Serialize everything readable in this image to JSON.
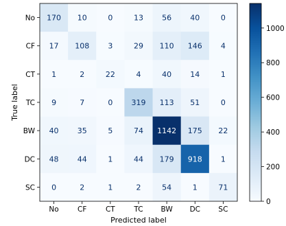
{
  "chart_data": {
    "type": "heatmap",
    "title": "",
    "xlabel": "Predicted label",
    "ylabel": "True label",
    "x_categories": [
      "No",
      "CF",
      "CT",
      "TC",
      "BW",
      "DC",
      "SC"
    ],
    "y_categories": [
      "No",
      "CF",
      "CT",
      "TC",
      "BW",
      "DC",
      "SC"
    ],
    "values": [
      [
        170,
        10,
        0,
        13,
        56,
        40,
        0
      ],
      [
        17,
        108,
        3,
        29,
        110,
        146,
        4
      ],
      [
        1,
        2,
        22,
        4,
        40,
        14,
        1
      ],
      [
        9,
        7,
        0,
        319,
        113,
        51,
        0
      ],
      [
        40,
        35,
        5,
        74,
        1142,
        175,
        22
      ],
      [
        48,
        44,
        1,
        44,
        179,
        918,
        1
      ],
      [
        0,
        2,
        1,
        2,
        54,
        1,
        71
      ]
    ],
    "colormap": "Blues",
    "colorbar": {
      "range": [
        0,
        1142
      ],
      "ticks": [
        0,
        200,
        400,
        600,
        800,
        1000
      ]
    },
    "grid": false
  }
}
